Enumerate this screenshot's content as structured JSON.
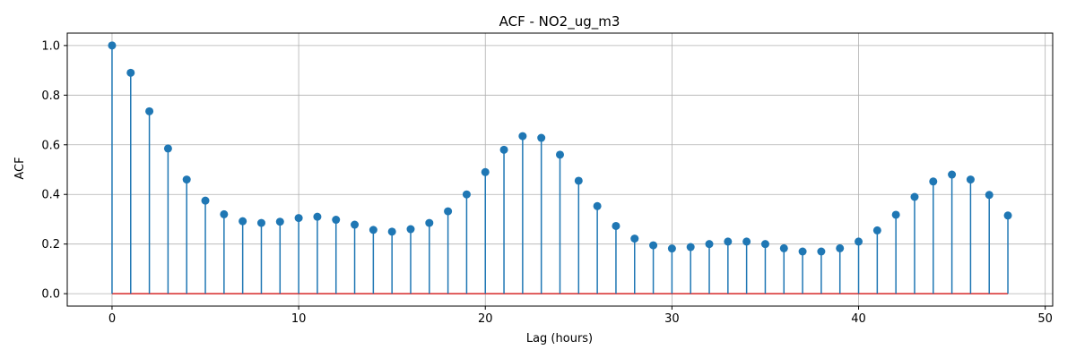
{
  "chart_data": {
    "type": "stem",
    "title": "ACF - NO2_ug_m3",
    "xlabel": "Lag (hours)",
    "ylabel": "ACF",
    "xlim": [
      -2.4,
      50.4
    ],
    "ylim": [
      -0.05,
      1.05
    ],
    "x_ticks": [
      0,
      10,
      20,
      30,
      40,
      50
    ],
    "y_ticks": [
      0.0,
      0.2,
      0.4,
      0.6,
      0.8,
      1.0
    ],
    "x_tick_labels": [
      "0",
      "10",
      "20",
      "30",
      "40",
      "50"
    ],
    "y_tick_labels": [
      "0.0",
      "0.2",
      "0.4",
      "0.6",
      "0.8",
      "1.0"
    ],
    "grid": true,
    "colors": {
      "stem": "#1f77b4",
      "baseline": "#d62728",
      "grid": "#b0b0b0"
    },
    "series": [
      {
        "x": [
          0,
          1,
          2,
          3,
          4,
          5,
          6,
          7,
          8,
          9,
          10,
          11,
          12,
          13,
          14,
          15,
          16,
          17,
          18,
          19,
          20,
          21,
          22,
          23,
          24,
          25,
          26,
          27,
          28,
          29,
          30,
          31,
          32,
          33,
          34,
          35,
          36,
          37,
          38,
          39,
          40,
          41,
          42,
          43,
          44,
          45,
          46,
          47,
          48
        ],
        "values": [
          1.0,
          0.89,
          0.735,
          0.585,
          0.46,
          0.375,
          0.32,
          0.292,
          0.285,
          0.29,
          0.305,
          0.31,
          0.298,
          0.278,
          0.257,
          0.25,
          0.26,
          0.285,
          0.332,
          0.4,
          0.49,
          0.58,
          0.635,
          0.628,
          0.56,
          0.455,
          0.353,
          0.273,
          0.222,
          0.195,
          0.182,
          0.188,
          0.2,
          0.21,
          0.21,
          0.2,
          0.183,
          0.17,
          0.17,
          0.183,
          0.21,
          0.255,
          0.318,
          0.39,
          0.452,
          0.48,
          0.46,
          0.398,
          0.315
        ]
      }
    ]
  }
}
